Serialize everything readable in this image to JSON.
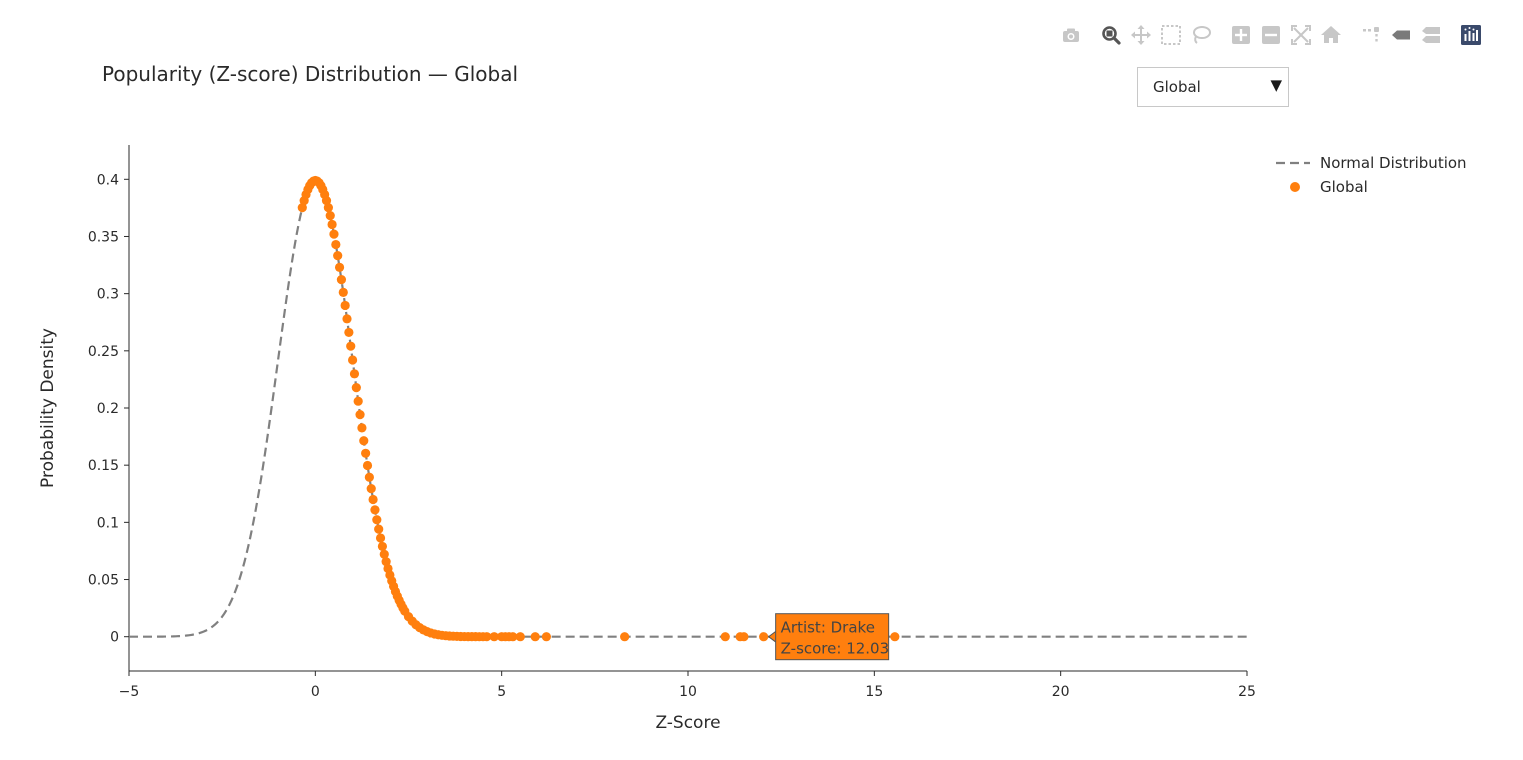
{
  "page": {
    "title": "Popularity (Z-score) Distribution — Global",
    "dropdown": {
      "selected": "Global"
    }
  },
  "modebar": {
    "icons": [
      "camera-icon",
      "zoom-icon",
      "pan-icon",
      "box-select-icon",
      "lasso-icon",
      "zoom-in-icon",
      "zoom-out-icon",
      "autoscale-icon",
      "home-icon",
      "spike-lines-icon",
      "hover-closest-icon",
      "hover-compare-icon",
      "plotly-logo-icon"
    ]
  },
  "tooltip": {
    "line1": "Artist: Drake",
    "line2": "Z-score: 12.03",
    "x": 12.03,
    "y": 0
  },
  "chart_data": {
    "type": "scatter",
    "xlabel": "Z-Score",
    "ylabel": "Probability Density",
    "xlim": [
      -5,
      25
    ],
    "ylim": [
      -0.03,
      0.43
    ],
    "xticks": [
      -5,
      0,
      5,
      10,
      15,
      20,
      25
    ],
    "xtick_labels": [
      "−5",
      "0",
      "5",
      "10",
      "15",
      "20",
      "25"
    ],
    "yticks": [
      0,
      0.05,
      0.1,
      0.15,
      0.2,
      0.25,
      0.3,
      0.35,
      0.4
    ],
    "ytick_labels": [
      "0",
      "0.05",
      "0.1",
      "0.15",
      "0.2",
      "0.25",
      "0.3",
      "0.35",
      "0.4"
    ],
    "grid": false,
    "legend_position": "top-right",
    "series": [
      {
        "name": "Normal Distribution",
        "kind": "line-dashed",
        "color": "#808080",
        "x_range": [
          -5,
          25
        ]
      },
      {
        "name": "Global",
        "kind": "markers",
        "color": "#ff7f0e",
        "x": [
          -0.35,
          -0.3,
          -0.25,
          -0.2,
          -0.15,
          -0.1,
          -0.05,
          0,
          0.05,
          0.1,
          0.15,
          0.2,
          0.25,
          0.3,
          0.35,
          0.4,
          0.45,
          0.5,
          0.55,
          0.6,
          0.65,
          0.7,
          0.75,
          0.8,
          0.85,
          0.9,
          0.95,
          1.0,
          1.05,
          1.1,
          1.15,
          1.2,
          1.25,
          1.3,
          1.35,
          1.4,
          1.45,
          1.5,
          1.55,
          1.6,
          1.65,
          1.7,
          1.75,
          1.8,
          1.85,
          1.9,
          1.95,
          2.0,
          2.05,
          2.1,
          2.15,
          2.2,
          2.25,
          2.3,
          2.35,
          2.4,
          2.5,
          2.6,
          2.7,
          2.8,
          2.9,
          3.0,
          3.1,
          3.2,
          3.3,
          3.4,
          3.5,
          3.6,
          3.7,
          3.8,
          3.9,
          4.0,
          4.1,
          4.2,
          4.3,
          4.4,
          4.5,
          4.6,
          4.8,
          5.0,
          5.1,
          5.2,
          5.3,
          5.5,
          5.9,
          6.2,
          8.3,
          11.0,
          11.4,
          11.5,
          12.03,
          15.55
        ]
      }
    ]
  }
}
